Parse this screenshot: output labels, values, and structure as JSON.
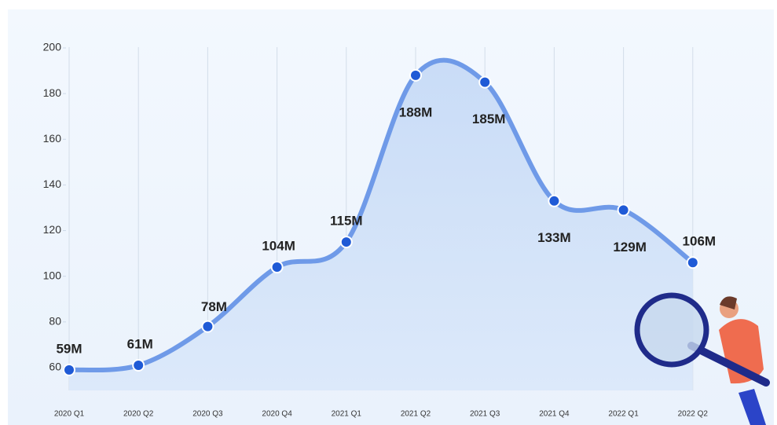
{
  "chart_data": {
    "type": "line",
    "categories": [
      "2020 Q1",
      "2020 Q2",
      "2020 Q3",
      "2020 Q4",
      "2021 Q1",
      "2021 Q2",
      "2021 Q3",
      "2021 Q4",
      "2022 Q1",
      "2022 Q2"
    ],
    "values": [
      59,
      61,
      78,
      104,
      115,
      188,
      185,
      133,
      129,
      106
    ],
    "value_labels": [
      "59M",
      "61M",
      "78M",
      "104M",
      "115M",
      "188M",
      "185M",
      "133M",
      "129M",
      "106M"
    ],
    "color": "#6f9ae8",
    "ylim": [
      50,
      200
    ],
    "yticks": [
      60,
      80,
      100,
      120,
      140,
      160,
      180,
      200
    ]
  }
}
